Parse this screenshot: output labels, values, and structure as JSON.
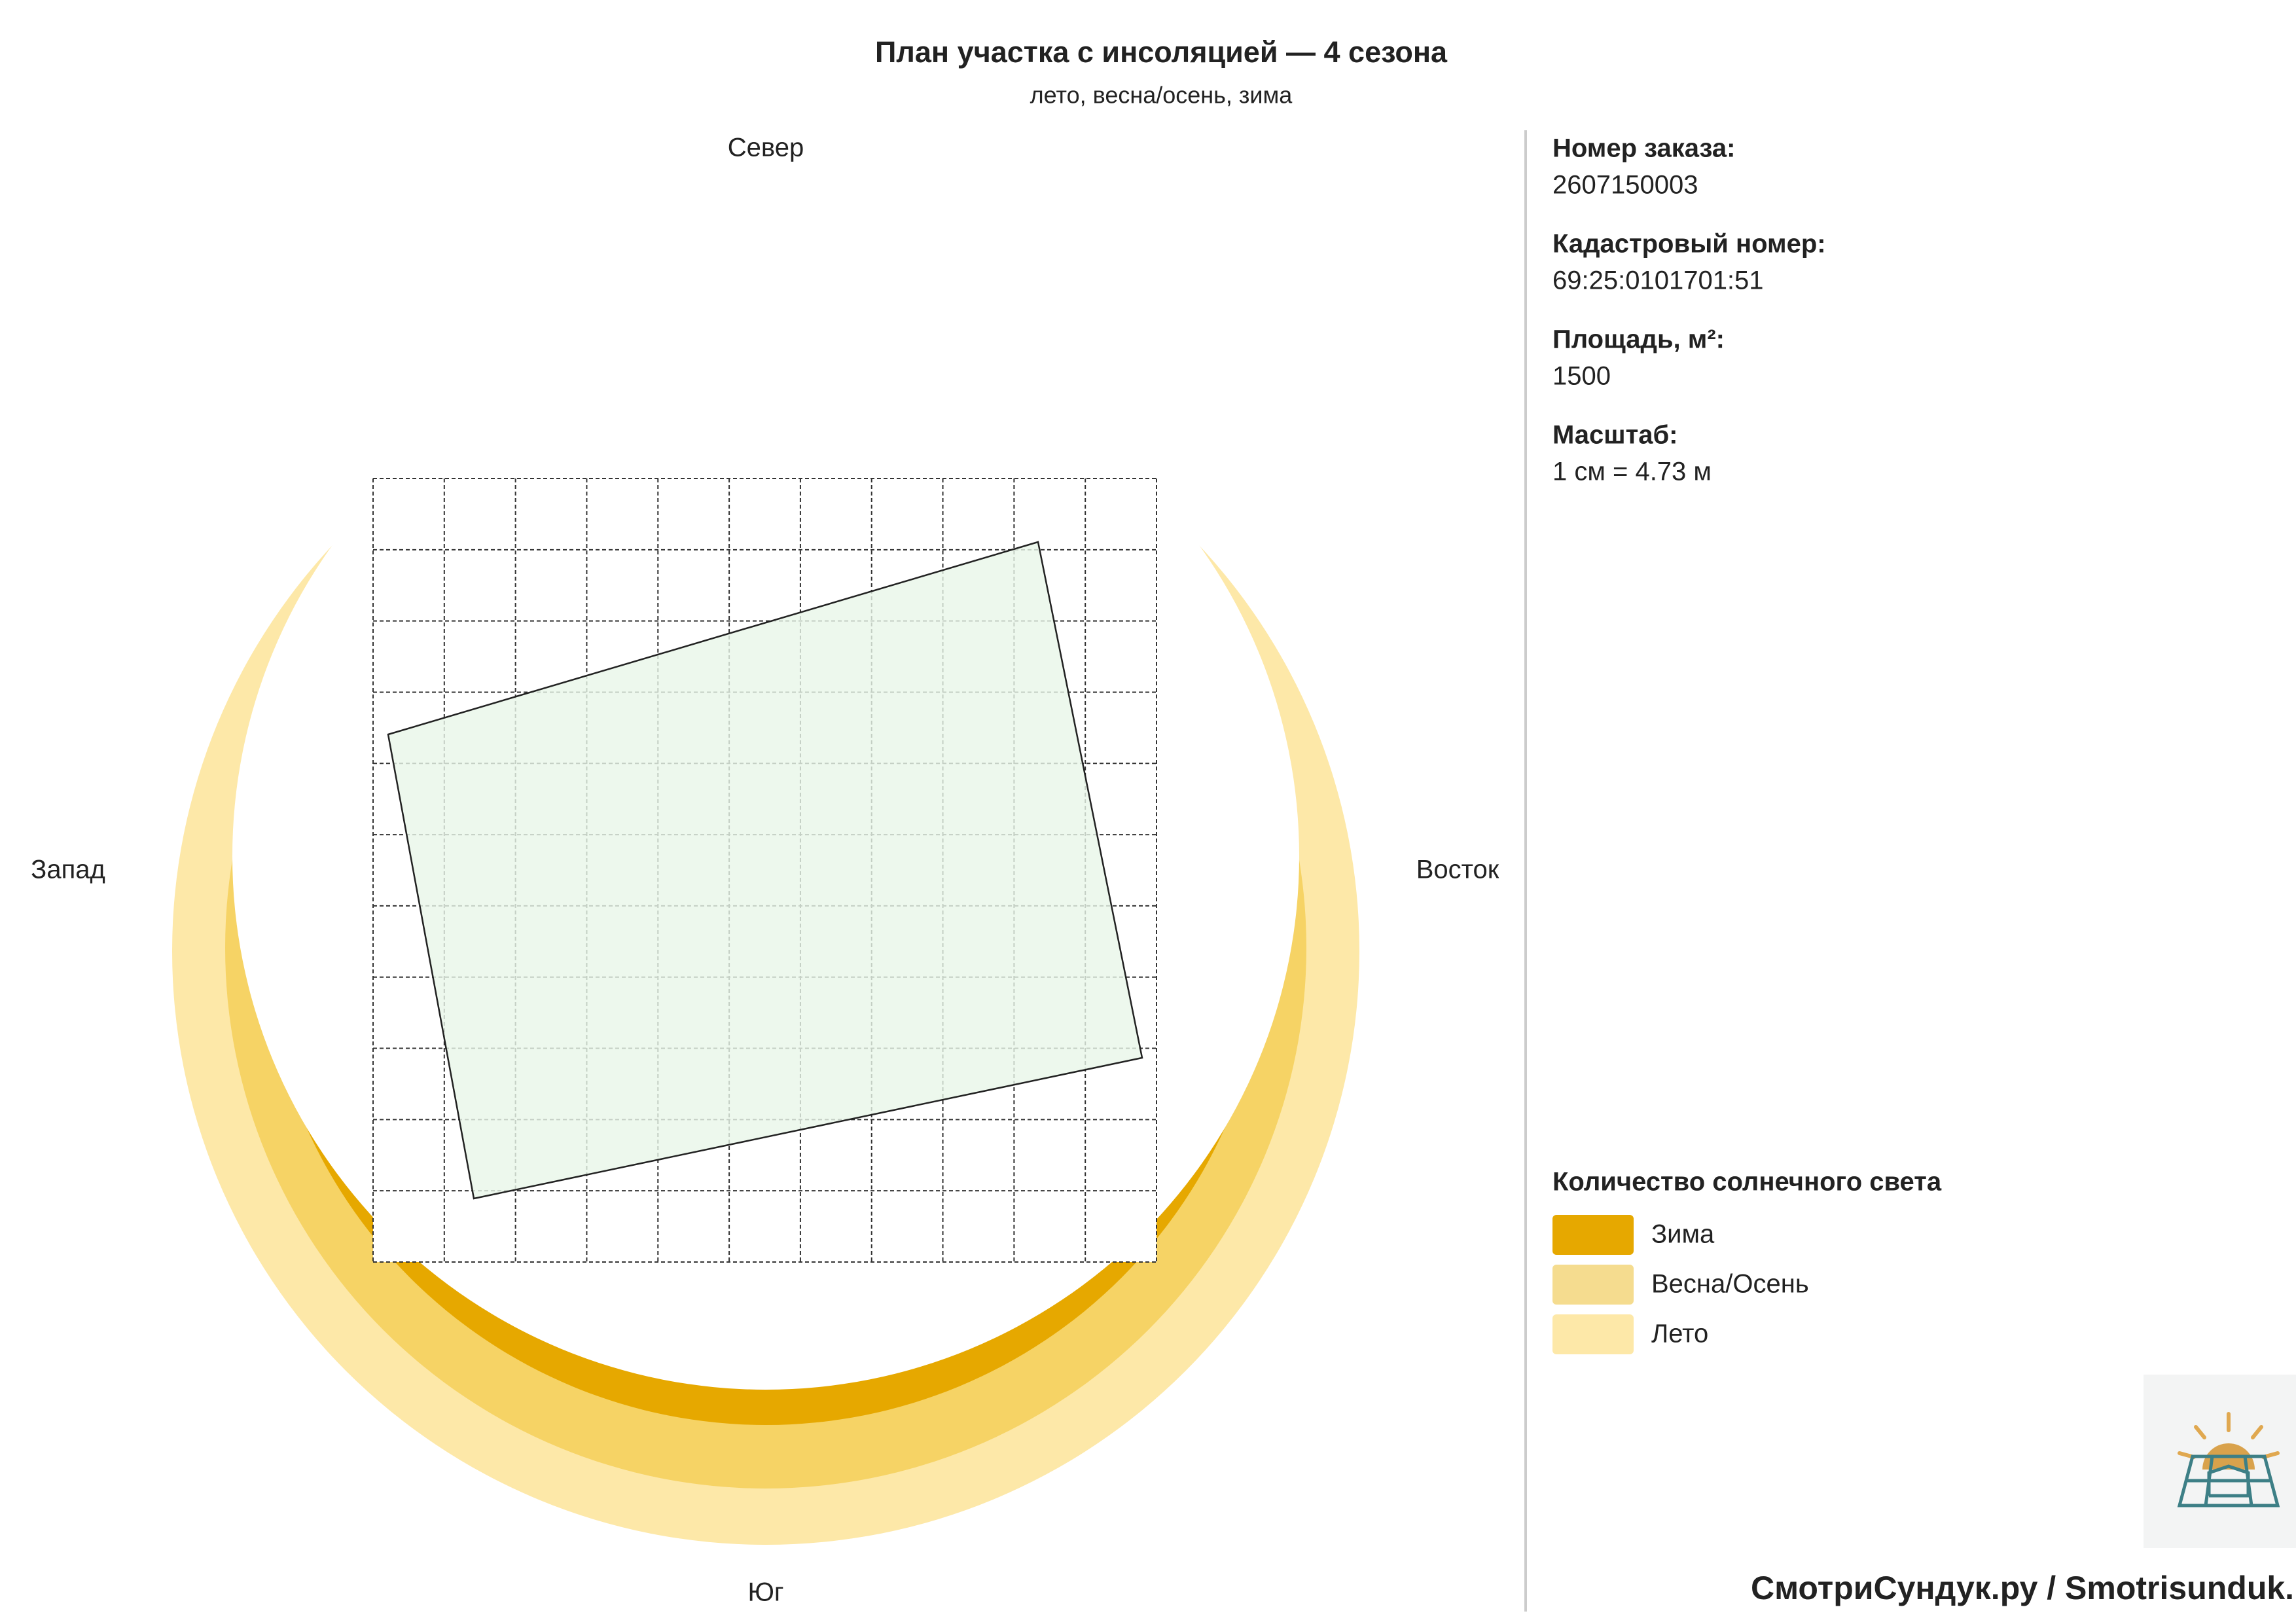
{
  "header": {
    "title": "План участка с инсоляцией — 4 сезона",
    "subtitle": "лето, весна/осень, зима"
  },
  "compass": {
    "north": "Север",
    "west": "Запад",
    "east": "Восток",
    "south": "Юг"
  },
  "info": [
    {
      "label": "Номер заказа:",
      "value": "2607150003"
    },
    {
      "label": "Кадастровый номер:",
      "value": "69:25:0101701:51"
    },
    {
      "label": "Площадь, м²:",
      "value": "1500"
    },
    {
      "label": "Масштаб:",
      "value": "1 см = 4.73 м"
    }
  ],
  "legend": {
    "title": "Количество солнечного света",
    "items": [
      {
        "label": "Зима",
        "color": "#e6a800"
      },
      {
        "label": "Весна/Осень",
        "color": "#f5dc8f"
      },
      {
        "label": "Лето",
        "color": "#fde8a8"
      }
    ]
  },
  "footer": "СмотриСундук.ру / Smotrisunduk.ru"
}
